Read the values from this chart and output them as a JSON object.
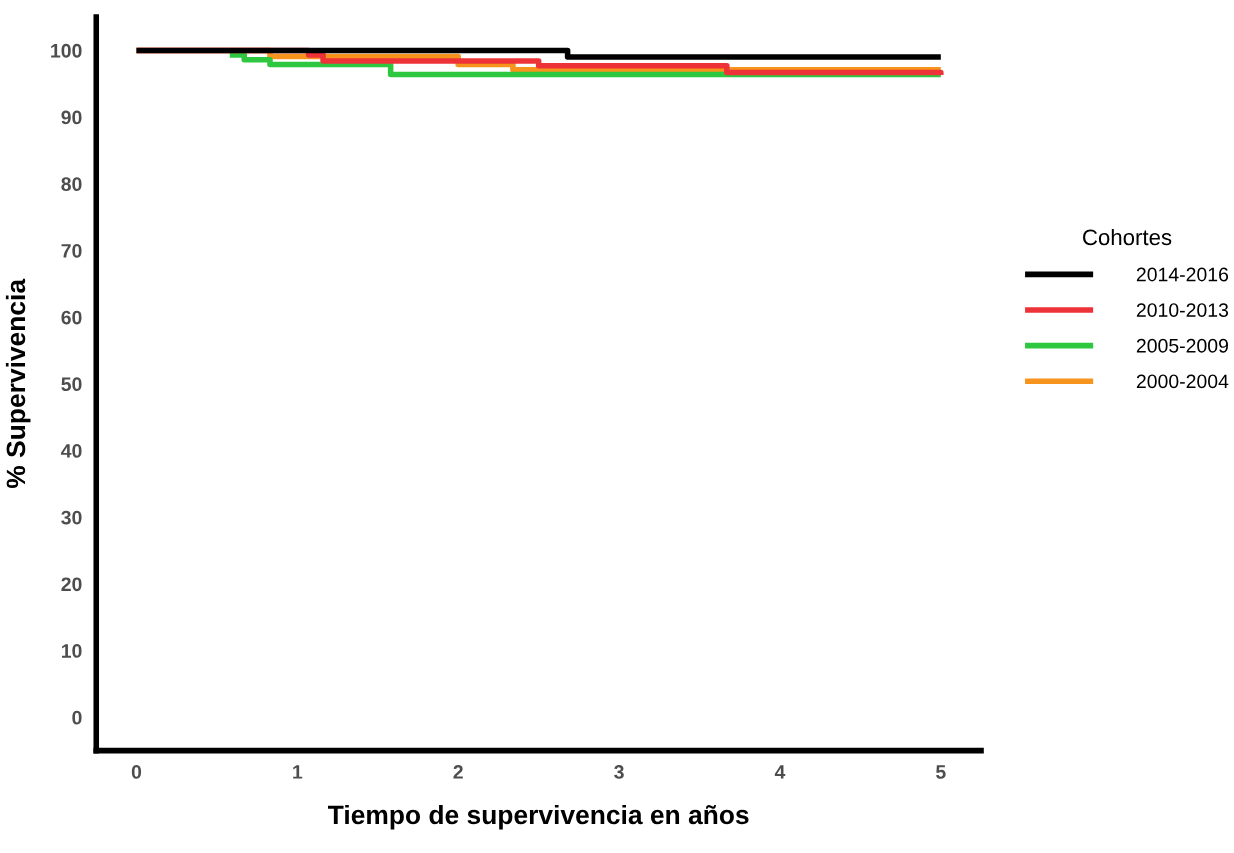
{
  "chart_data": {
    "type": "step",
    "xlabel": "Tiempo de supervivencia en años",
    "ylabel": "% Supervivencia",
    "legend_title": "Cohortes",
    "legend": "right",
    "xlim": [
      -0.25,
      5.25
    ],
    "xticks": [
      0,
      1,
      2,
      3,
      4,
      5
    ],
    "ylim": [
      -5,
      105
    ],
    "yticks": [
      0,
      10,
      20,
      30,
      40,
      50,
      60,
      70,
      80,
      90,
      100
    ],
    "grid": false,
    "series": [
      {
        "name": "2014-2016",
        "color": "#000000",
        "x": [
          0,
          2.68,
          5
        ],
        "values": [
          100,
          99.0,
          99.0
        ]
      },
      {
        "name": "2010-2013",
        "color": "#ee3338",
        "x": [
          0,
          1.07,
          1.16,
          2.5,
          3.67,
          5
        ],
        "values": [
          100,
          99.3,
          98.4,
          97.7,
          96.7,
          96.3
        ]
      },
      {
        "name": "2005-2009",
        "color": "#2ec840",
        "x": [
          0.58,
          0.67,
          0.83,
          1.58,
          5
        ],
        "values": [
          99.3,
          98.6,
          97.9,
          96.4,
          96.4
        ]
      },
      {
        "name": "2000-2004",
        "color": "#f7941d",
        "x": [
          0,
          0.83,
          2.0,
          2.34,
          5
        ],
        "values": [
          100,
          99.1,
          97.9,
          97.1,
          97.1
        ]
      }
    ]
  }
}
